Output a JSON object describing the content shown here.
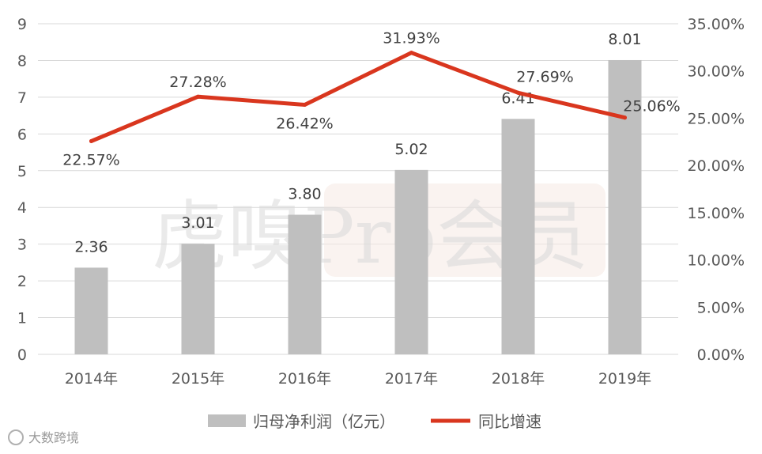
{
  "chart_data": {
    "type": "bar+line",
    "categories": [
      "2014年",
      "2015年",
      "2016年",
      "2017年",
      "2018年",
      "2019年"
    ],
    "series": [
      {
        "name": "归母净利润（亿元）",
        "type": "bar",
        "axis": "left",
        "values": [
          2.36,
          3.01,
          3.8,
          5.02,
          6.41,
          8.01
        ],
        "labels": [
          "2.36",
          "3.01",
          "3.80",
          "5.02",
          "6.41",
          "8.01"
        ],
        "color": "#bfbfbf"
      },
      {
        "name": "同比增速",
        "type": "line",
        "axis": "right",
        "values": [
          22.57,
          27.28,
          26.42,
          31.93,
          27.69,
          25.06
        ],
        "labels": [
          "22.57%",
          "27.28%",
          "26.42%",
          "31.93%",
          "27.69%",
          "25.06%"
        ],
        "color": "#d9361e"
      }
    ],
    "left_axis": {
      "ticks": [
        "0",
        "1",
        "2",
        "3",
        "4",
        "5",
        "6",
        "7",
        "8",
        "9"
      ],
      "range": [
        0,
        9
      ]
    },
    "right_axis": {
      "ticks": [
        "0.00%",
        "5.00%",
        "10.00%",
        "15.00%",
        "20.00%",
        "25.00%",
        "30.00%",
        "35.00%"
      ],
      "range": [
        0,
        35
      ]
    },
    "grid": true,
    "legend_position": "bottom"
  },
  "watermark": {
    "text": "虎嗅Pro会员",
    "footer": "大数跨境"
  }
}
